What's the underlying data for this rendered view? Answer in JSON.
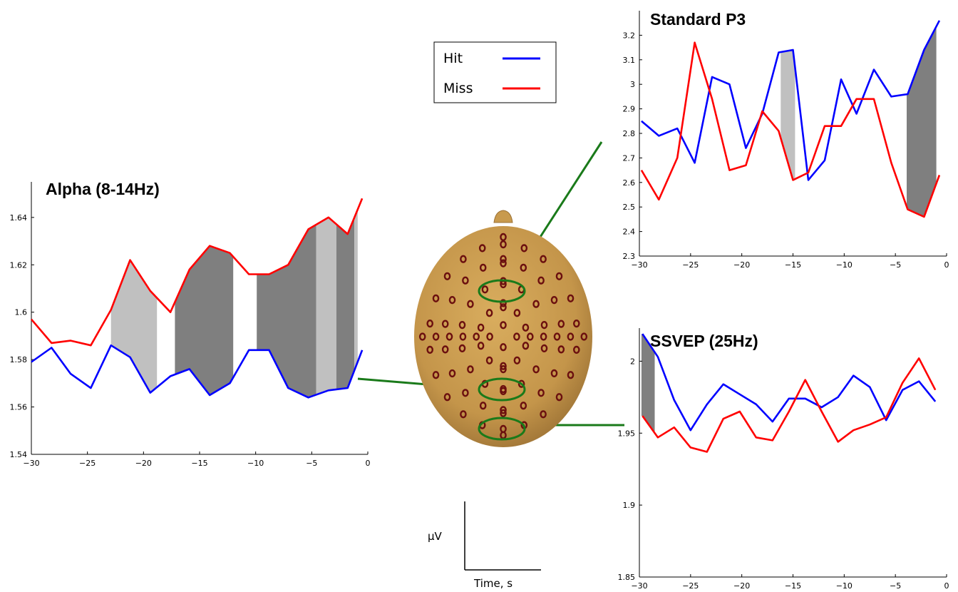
{
  "legend": [
    {
      "label": "Hit",
      "color": "#0000ff"
    },
    {
      "label": "Miss",
      "color": "#ff0000"
    }
  ],
  "axis_key": {
    "y_unit": "μV",
    "x_unit": "Time, s"
  },
  "colors": {
    "hit": "#0000ff",
    "miss": "#ff0000",
    "shade_light": "#c0c0c0",
    "shade_dark": "#7f7f7f",
    "connector": "#1a7a1a",
    "head": "#c89a4e",
    "electrode": "#6b0f0f"
  },
  "chart_data": [
    {
      "id": "alpha",
      "type": "line",
      "title": "Alpha (8-14Hz)",
      "xlim": [
        -30,
        0
      ],
      "ylim": [
        1.54,
        1.655
      ],
      "xticks": [
        -30,
        -25,
        -20,
        -15,
        -10,
        -5,
        0
      ],
      "yticks": [
        1.54,
        1.56,
        1.58,
        1.6,
        1.62,
        1.64
      ],
      "ytick_labels": [
        "1.54",
        "1.56",
        "1.58",
        "1.6",
        "1.62",
        "1.64"
      ],
      "x": [
        -30,
        -28.2,
        -26.5,
        -24.7,
        -22.9,
        -21.2,
        -19.4,
        -17.6,
        -15.9,
        -14.1,
        -12.3,
        -10.6,
        -8.8,
        -7.1,
        -5.3,
        -3.5,
        -1.8,
        -0.5
      ],
      "series": [
        {
          "name": "Hit",
          "values": [
            1.579,
            1.585,
            1.574,
            1.568,
            1.586,
            1.581,
            1.566,
            1.573,
            1.576,
            1.565,
            1.57,
            1.584,
            1.584,
            1.568,
            1.564,
            1.567,
            1.568,
            1.584
          ]
        },
        {
          "name": "Miss",
          "values": [
            1.597,
            1.587,
            1.588,
            1.586,
            1.601,
            1.622,
            1.609,
            1.6,
            1.618,
            1.628,
            1.625,
            1.616,
            1.616,
            1.62,
            1.635,
            1.64,
            1.633,
            1.648
          ]
        }
      ],
      "shaded_regions": [
        {
          "x": [
            -22.9,
            -18.8
          ],
          "shade": "light"
        },
        {
          "x": [
            -17.2,
            -12.0
          ],
          "shade": "dark"
        },
        {
          "x": [
            -9.9,
            -4.6
          ],
          "shade": "dark"
        },
        {
          "x": [
            -4.6,
            -2.8
          ],
          "shade": "light"
        },
        {
          "x": [
            -2.8,
            -1.2
          ],
          "shade": "dark"
        },
        {
          "x": [
            -1.2,
            -0.9
          ],
          "shade": "light"
        }
      ]
    },
    {
      "id": "p3",
      "type": "line",
      "title": "Standard P3",
      "xlim": [
        -30,
        0
      ],
      "ylim": [
        2.3,
        3.3
      ],
      "xticks": [
        -30,
        -25,
        -20,
        -15,
        -10,
        -5,
        0
      ],
      "yticks": [
        2.3,
        2.4,
        2.5,
        2.6,
        2.7,
        2.8,
        2.9,
        3.0,
        3.1,
        3.2
      ],
      "ytick_labels": [
        "2.3",
        "2.4",
        "2.5",
        "2.6",
        "2.7",
        "2.8",
        "2.9",
        "3",
        "3.1",
        "3.2"
      ],
      "x": [
        -29.8,
        -28.1,
        -26.3,
        -24.6,
        -22.9,
        -21.2,
        -19.6,
        -18.0,
        -16.4,
        -15.0,
        -13.5,
        -11.9,
        -10.3,
        -8.8,
        -7.1,
        -5.4,
        -3.8,
        -2.2,
        -0.7
      ],
      "series": [
        {
          "name": "Hit",
          "values": [
            2.85,
            2.79,
            2.82,
            2.68,
            3.03,
            3.0,
            2.74,
            2.88,
            3.13,
            3.14,
            2.61,
            2.69,
            3.02,
            2.88,
            3.06,
            2.95,
            2.96,
            3.14,
            3.26
          ]
        },
        {
          "name": "Miss",
          "values": [
            2.65,
            2.53,
            2.7,
            3.17,
            2.94,
            2.65,
            2.67,
            2.89,
            2.81,
            2.61,
            2.64,
            2.83,
            2.83,
            2.94,
            2.94,
            2.68,
            2.49,
            2.46,
            2.63
          ]
        }
      ],
      "shaded_regions": [
        {
          "x": [
            -16.2,
            -14.8
          ],
          "shade": "light"
        },
        {
          "x": [
            -3.9,
            -1.0
          ],
          "shade": "dark"
        }
      ]
    },
    {
      "id": "ssvep",
      "type": "line",
      "title": "SSVEP (25Hz)",
      "xlim": [
        -30,
        0
      ],
      "ylim": [
        1.85,
        2.023
      ],
      "xticks": [
        -30,
        -25,
        -20,
        -15,
        -10,
        -5,
        0
      ],
      "yticks": [
        1.85,
        1.9,
        1.95,
        2.0
      ],
      "ytick_labels": [
        "1.85",
        "1.9",
        "1.95",
        "2"
      ],
      "x": [
        -29.7,
        -28.2,
        -26.6,
        -25.0,
        -23.4,
        -21.8,
        -20.2,
        -18.6,
        -17.0,
        -15.4,
        -13.8,
        -12.2,
        -10.6,
        -9.1,
        -7.5,
        -5.9,
        -4.3,
        -2.7,
        -1.1
      ],
      "series": [
        {
          "name": "Hit",
          "values": [
            2.019,
            2.003,
            1.973,
            1.952,
            1.97,
            1.984,
            1.977,
            1.97,
            1.958,
            1.974,
            1.974,
            1.968,
            1.975,
            1.99,
            1.982,
            1.959,
            1.98,
            1.986,
            1.972
          ]
        },
        {
          "name": "Miss",
          "values": [
            1.962,
            1.947,
            1.954,
            1.94,
            1.937,
            1.96,
            1.965,
            1.947,
            1.945,
            1.965,
            1.987,
            1.965,
            1.944,
            1.952,
            1.956,
            1.961,
            1.985,
            2.002,
            1.98
          ]
        }
      ],
      "shaded_regions": [
        {
          "x": [
            -29.8,
            -28.5
          ],
          "shade": "dark"
        }
      ]
    }
  ]
}
